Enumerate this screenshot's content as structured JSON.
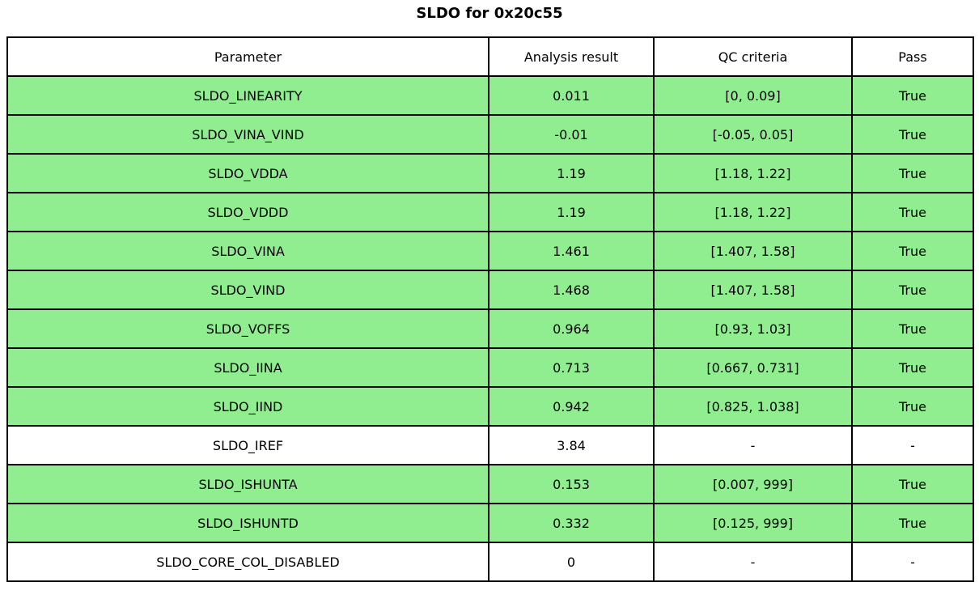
{
  "title": "SLDO for 0x20c55",
  "colors": {
    "pass_row_background": "#90EE90",
    "neutral_row_background": "#FFFFFF",
    "border": "#000000"
  },
  "table": {
    "headers": [
      "Parameter",
      "Analysis result",
      "QC criteria",
      "Pass"
    ],
    "rows": [
      {
        "parameter": "SLDO_LINEARITY",
        "result": "0.011",
        "criteria": "[0, 0.09]",
        "pass": "True",
        "highlight": true
      },
      {
        "parameter": "SLDO_VINA_VIND",
        "result": "-0.01",
        "criteria": "[-0.05, 0.05]",
        "pass": "True",
        "highlight": true
      },
      {
        "parameter": "SLDO_VDDA",
        "result": "1.19",
        "criteria": "[1.18, 1.22]",
        "pass": "True",
        "highlight": true
      },
      {
        "parameter": "SLDO_VDDD",
        "result": "1.19",
        "criteria": "[1.18, 1.22]",
        "pass": "True",
        "highlight": true
      },
      {
        "parameter": "SLDO_VINA",
        "result": "1.461",
        "criteria": "[1.407, 1.58]",
        "pass": "True",
        "highlight": true
      },
      {
        "parameter": "SLDO_VIND",
        "result": "1.468",
        "criteria": "[1.407, 1.58]",
        "pass": "True",
        "highlight": true
      },
      {
        "parameter": "SLDO_VOFFS",
        "result": "0.964",
        "criteria": "[0.93, 1.03]",
        "pass": "True",
        "highlight": true
      },
      {
        "parameter": "SLDO_IINA",
        "result": "0.713",
        "criteria": "[0.667, 0.731]",
        "pass": "True",
        "highlight": true
      },
      {
        "parameter": "SLDO_IIND",
        "result": "0.942",
        "criteria": "[0.825, 1.038]",
        "pass": "True",
        "highlight": true
      },
      {
        "parameter": "SLDO_IREF",
        "result": "3.84",
        "criteria": "-",
        "pass": "-",
        "highlight": false
      },
      {
        "parameter": "SLDO_ISHUNTA",
        "result": "0.153",
        "criteria": "[0.007, 999]",
        "pass": "True",
        "highlight": true
      },
      {
        "parameter": "SLDO_ISHUNTD",
        "result": "0.332",
        "criteria": "[0.125, 999]",
        "pass": "True",
        "highlight": true
      },
      {
        "parameter": "SLDO_CORE_COL_DISABLED",
        "result": "0",
        "criteria": "-",
        "pass": "-",
        "highlight": false
      }
    ]
  },
  "chart_data": {
    "type": "table",
    "title": "SLDO for 0x20c55",
    "columns": [
      "Parameter",
      "Analysis result",
      "QC criteria",
      "Pass"
    ],
    "rows": [
      [
        "SLDO_LINEARITY",
        "0.011",
        "[0, 0.09]",
        "True"
      ],
      [
        "SLDO_VINA_VIND",
        "-0.01",
        "[-0.05, 0.05]",
        "True"
      ],
      [
        "SLDO_VDDA",
        "1.19",
        "[1.18, 1.22]",
        "True"
      ],
      [
        "SLDO_VDDD",
        "1.19",
        "[1.18, 1.22]",
        "True"
      ],
      [
        "SLDO_VINA",
        "1.461",
        "[1.407, 1.58]",
        "True"
      ],
      [
        "SLDO_VIND",
        "1.468",
        "[1.407, 1.58]",
        "True"
      ],
      [
        "SLDO_VOFFS",
        "0.964",
        "[0.93, 1.03]",
        "True"
      ],
      [
        "SLDO_IINA",
        "0.713",
        "[0.667, 0.731]",
        "True"
      ],
      [
        "SLDO_IIND",
        "0.942",
        "[0.825, 1.038]",
        "True"
      ],
      [
        "SLDO_IREF",
        "3.84",
        "-",
        "-"
      ],
      [
        "SLDO_ISHUNTA",
        "0.153",
        "[0.007, 999]",
        "True"
      ],
      [
        "SLDO_ISHUNTD",
        "0.332",
        "[0.125, 999]",
        "True"
      ],
      [
        "SLDO_CORE_COL_DISABLED",
        "0",
        "-",
        "-"
      ]
    ]
  }
}
